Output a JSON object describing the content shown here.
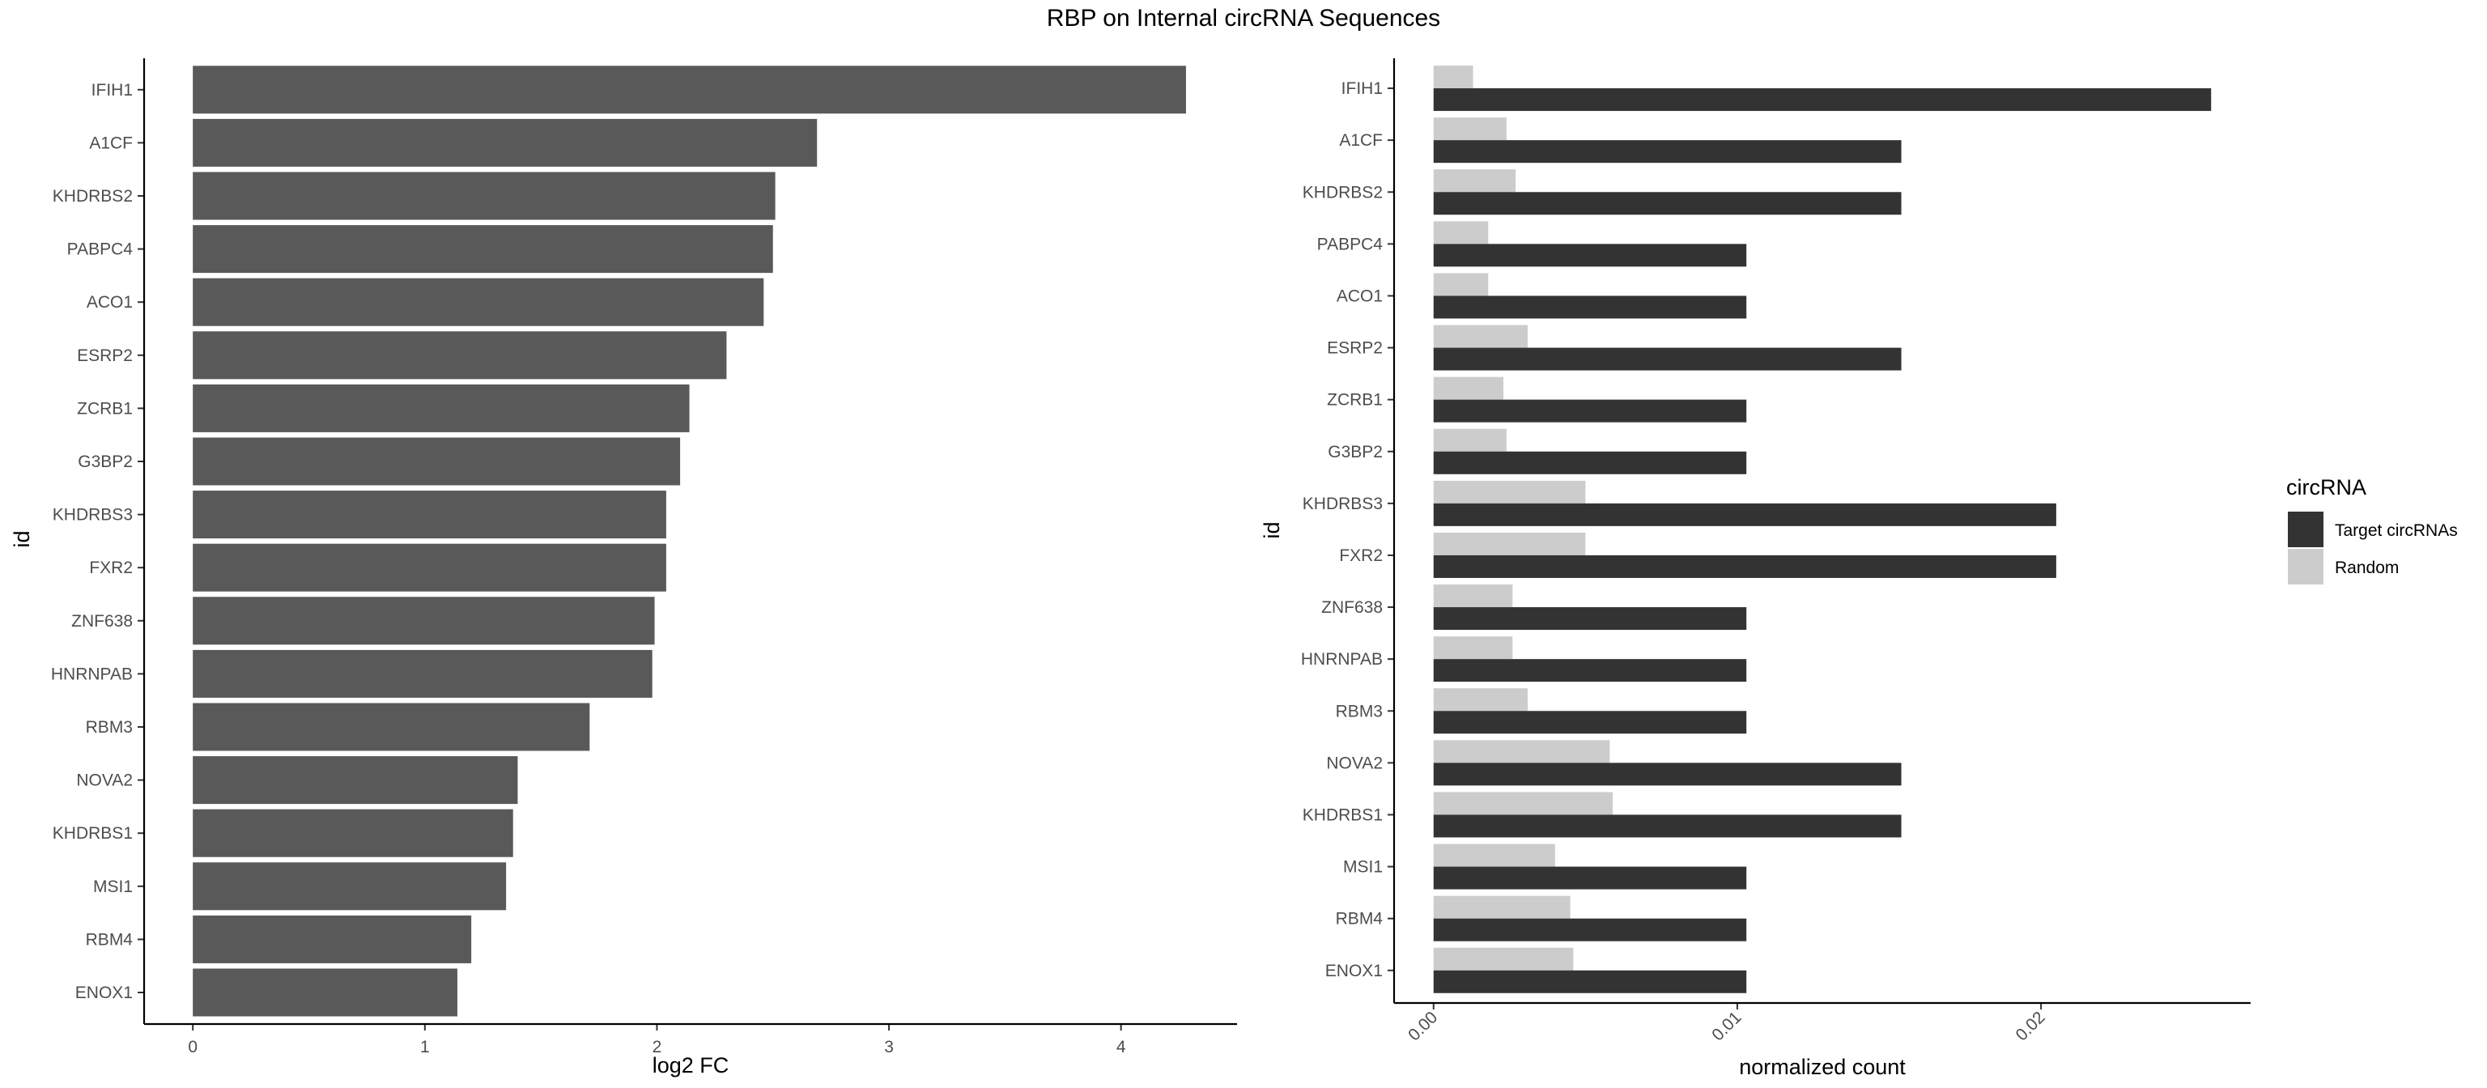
{
  "title": "RBP on Internal circRNA Sequences",
  "colors": {
    "left_bar": "#595959",
    "target": "#333333",
    "random": "#cccccc"
  },
  "chart_data": [
    {
      "type": "bar",
      "orientation": "horizontal",
      "categories": [
        "IFIH1",
        "A1CF",
        "KHDRBS2",
        "PABPC4",
        "ACO1",
        "ESRP2",
        "ZCRB1",
        "G3BP2",
        "KHDRBS3",
        "FXR2",
        "ZNF638",
        "HNRNPAB",
        "RBM3",
        "NOVA2",
        "KHDRBS1",
        "MSI1",
        "RBM4",
        "ENOX1"
      ],
      "values": [
        4.28,
        2.69,
        2.51,
        2.5,
        2.46,
        2.3,
        2.14,
        2.1,
        2.04,
        2.04,
        1.99,
        1.98,
        1.71,
        1.4,
        1.38,
        1.35,
        1.2,
        1.14
      ],
      "xlabel": "log2 FC",
      "ylabel": "id",
      "xlim": [
        -0.21,
        4.5
      ],
      "xticks": [
        0,
        1,
        2,
        3,
        4
      ],
      "grid": false
    },
    {
      "type": "bar",
      "orientation": "horizontal",
      "categories": [
        "IFIH1",
        "A1CF",
        "KHDRBS2",
        "PABPC4",
        "ACO1",
        "ESRP2",
        "ZCRB1",
        "G3BP2",
        "KHDRBS3",
        "FXR2",
        "ZNF638",
        "HNRNPAB",
        "RBM3",
        "NOVA2",
        "KHDRBS1",
        "MSI1",
        "RBM4",
        "ENOX1"
      ],
      "series": [
        {
          "name": "Target circRNAs",
          "values": [
            0.0256,
            0.0154,
            0.0154,
            0.0103,
            0.0103,
            0.0154,
            0.0103,
            0.0103,
            0.0205,
            0.0205,
            0.0103,
            0.0103,
            0.0103,
            0.0154,
            0.0154,
            0.0103,
            0.0103,
            0.0103
          ]
        },
        {
          "name": "Random",
          "values": [
            0.0013,
            0.0024,
            0.0027,
            0.0018,
            0.0018,
            0.0031,
            0.0023,
            0.0024,
            0.005,
            0.005,
            0.0026,
            0.0026,
            0.0031,
            0.0058,
            0.0059,
            0.004,
            0.0045,
            0.0046
          ]
        }
      ],
      "xlabel": "normalized count",
      "ylabel": "id",
      "xlim": [
        -0.0013,
        0.0269
      ],
      "xticks": [
        0.0,
        0.01,
        0.02
      ],
      "xtick_labels": [
        "0.00",
        "0.01",
        "0.02"
      ],
      "legend": {
        "title": "circRNA",
        "placement": "right"
      },
      "grid": false
    }
  ]
}
